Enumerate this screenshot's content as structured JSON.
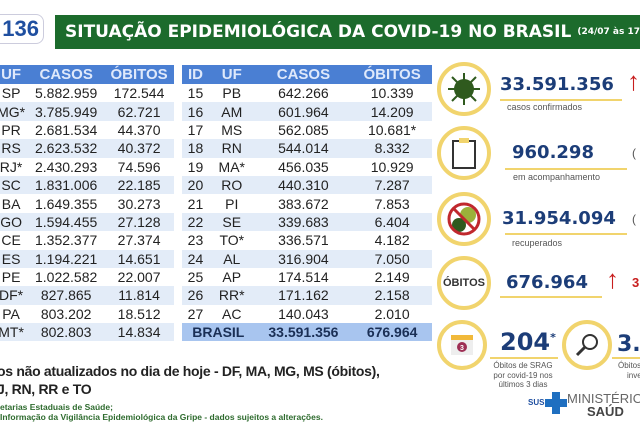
{
  "logo": {
    "edition_prefix": "E\nE",
    "edition": "136"
  },
  "header": {
    "title": "SITUAÇÃO EPIDEMIOLÓGICA DA COVID-19 NO BRASIL",
    "timestamp": "(24/07 às 17h"
  },
  "left_table": {
    "headers": [
      "UF",
      "CASOS",
      "ÓBITOS"
    ],
    "rows": [
      [
        "SP",
        "5.882.959",
        "172.544"
      ],
      [
        "MG*",
        "3.785.949",
        "62.721"
      ],
      [
        "PR",
        "2.681.534",
        "44.370"
      ],
      [
        "RS",
        "2.623.532",
        "40.372"
      ],
      [
        "RJ*",
        "2.430.293",
        "74.596"
      ],
      [
        "SC",
        "1.831.006",
        "22.185"
      ],
      [
        "BA",
        "1.649.355",
        "30.273"
      ],
      [
        "GO",
        "1.594.455",
        "27.128"
      ],
      [
        "CE",
        "1.352.377",
        "27.374"
      ],
      [
        "ES",
        "1.194.221",
        "14.651"
      ],
      [
        "PE",
        "1.022.582",
        "22.007"
      ],
      [
        "DF*",
        "827.865",
        "11.814"
      ],
      [
        "PA",
        "803.202",
        "18.512"
      ],
      [
        "MT*",
        "802.803",
        "14.834"
      ]
    ]
  },
  "right_table": {
    "headers": [
      "ID",
      "UF",
      "CASOS",
      "ÓBITOS"
    ],
    "rows": [
      [
        "15",
        "PB",
        "642.266",
        "10.339"
      ],
      [
        "16",
        "AM",
        "601.964",
        "14.209"
      ],
      [
        "17",
        "MS",
        "562.085",
        "10.681*"
      ],
      [
        "18",
        "RN",
        "544.014",
        "8.332"
      ],
      [
        "19",
        "MA*",
        "456.035",
        "10.929"
      ],
      [
        "20",
        "RO",
        "440.310",
        "7.287"
      ],
      [
        "21",
        "PI",
        "383.672",
        "7.853"
      ],
      [
        "22",
        "SE",
        "339.683",
        "6.404"
      ],
      [
        "23",
        "TO*",
        "336.571",
        "4.182"
      ],
      [
        "24",
        "AL",
        "316.904",
        "7.050"
      ],
      [
        "25",
        "AP",
        "174.514",
        "2.149"
      ],
      [
        "26",
        "RR*",
        "171.162",
        "2.158"
      ],
      [
        "27",
        "AC",
        "140.043",
        "2.010"
      ]
    ],
    "total": {
      "label": "BRASIL",
      "casos": "33.591.356",
      "obitos": "676.964"
    }
  },
  "stats": {
    "confirmed": {
      "value": "33.591.356",
      "label": "casos confirmados"
    },
    "monitoring": {
      "value": "960.298",
      "label": "em acompanhamento",
      "extra": "("
    },
    "recovered": {
      "value": "31.954.094",
      "label": "recuperados",
      "extra": "("
    },
    "deaths": {
      "badge": "ÓBITOS",
      "value": "676.964",
      "extra": "3"
    },
    "srag": {
      "value": "204",
      "asterisk": "*",
      "label": "Óbitos de SRAG por covid-19 nos últimos 3 dias",
      "calendar_num": "3"
    },
    "investigation": {
      "value": "3.",
      "label": "Óbitos",
      "label2": "inve"
    }
  },
  "footnote": {
    "line1": "os não atualizados no dia de hoje - DF, MA, MG, MS (óbitos),",
    "line2": "J, RN, RR e TO"
  },
  "sources": {
    "line1": "etarias Estaduais de Saúde;",
    "line2": "Informação da Vigilância Epidemiológica da Gripe - dados sujeitos a alterações."
  },
  "ministry": {
    "sus": "SUS",
    "line1": "MINISTÉRIO D",
    "line2": "SAÚD"
  },
  "colors": {
    "green": "#1c6b2c",
    "blue": "#1c3d78",
    "header": "#4a7fd3",
    "gold": "#f1d46d",
    "red": "#c81e1e"
  }
}
